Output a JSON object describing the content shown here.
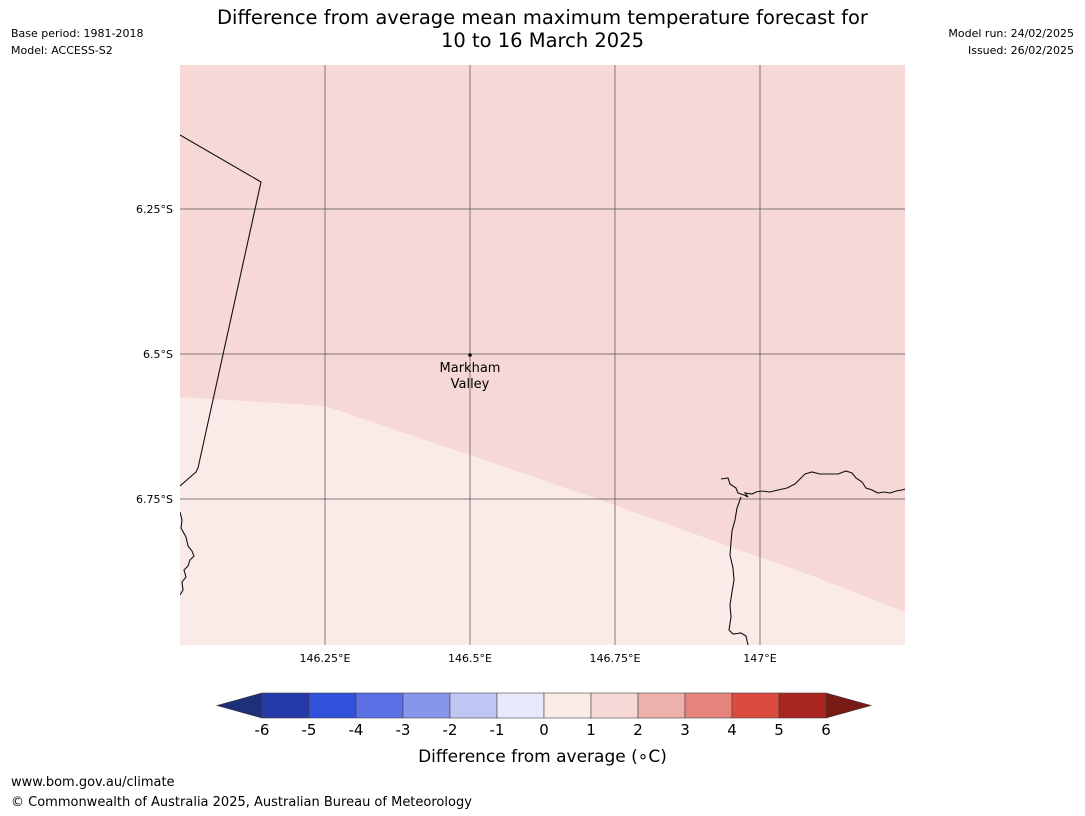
{
  "header": {
    "base_period": "Base period: 1981-2018",
    "model": "Model: ACCESS-S2",
    "model_run": "Model run: 24/02/2025",
    "issued": "Issued: 26/02/2025",
    "title_line1": "Difference from average mean maximum temperature forecast for",
    "title_line2": "10 to 16 March 2025"
  },
  "map": {
    "lat_labels": [
      "6.25°S",
      "6.5°S",
      "6.75°S"
    ],
    "lon_labels": [
      "146.25°E",
      "146.5°E",
      "146.75°E",
      "147°E"
    ],
    "place": {
      "name_line1": "Markham",
      "name_line2": "Valley"
    },
    "region_colors": {
      "range_1_to_2": "#f6d8d6",
      "range_0_to_1": "#fbebe8"
    }
  },
  "colorbar": {
    "label": "Difference from average (∘C)",
    "ticks": [
      "-6",
      "-5",
      "-4",
      "-3",
      "-2",
      "-1",
      "0",
      "1",
      "2",
      "3",
      "4",
      "5",
      "6"
    ],
    "under_color": "#1f2f7a",
    "over_color": "#7a1a14",
    "colors": [
      "#2539a8",
      "#3150dc",
      "#5b70e6",
      "#8796ec",
      "#c0c6f4",
      "#e8eafc",
      "#fbebe8",
      "#f6d8d6",
      "#eeb0ab",
      "#e5837c",
      "#db4b3f",
      "#a8261f"
    ]
  },
  "footer": {
    "url": "www.bom.gov.au/climate",
    "copyright": "© Commonwealth of Australia 2025, Australian Bureau of Meteorology"
  }
}
